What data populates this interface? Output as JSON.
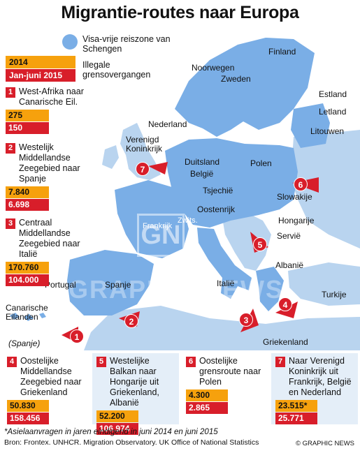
{
  "title": "Migrantie-routes naar Europa",
  "colors": {
    "schengen": "#7aaee6",
    "non_schengen": "#b9d4ef",
    "sea": "#ffffff",
    "route": "#d81e2a",
    "value_2014": "#f6a10d",
    "value_2015": "#d81e2a"
  },
  "legend": {
    "schengen_label": "Visa-vrije reiszone van Schengen",
    "year_label": "2014",
    "period_label": "Jan-juni 2015",
    "crossings_label": "Illegale grensovergangen"
  },
  "countries": {
    "finland": "Finland",
    "noorwegen": "Noorwegen",
    "zweden": "Zweden",
    "estland": "Estland",
    "letland": "Letland",
    "litouwen": "Litouwen",
    "nederland": "Nederland",
    "verenigd_koninkrijk": "Verenigd Koninkrijk",
    "duitsland": "Duitsland",
    "belgie": "België",
    "polen": "Polen",
    "tsjechie": "Tsjechië",
    "slowakije": "Slowakije",
    "oostenrijk": "Oostenrijk",
    "frankrijk": "Frankrijk",
    "zwitserland": "Zwits.",
    "hongarije": "Hongarije",
    "servie": "Servië",
    "albanie": "Albanië",
    "portugal": "Portugal",
    "spanje": "Spanje",
    "italie": "Italië",
    "turkije": "Turkije",
    "griekenland": "Griekenland",
    "canarische_eilanden": "Canarische Eilanden",
    "spanje_note": "(Spanje)"
  },
  "routes": [
    {
      "num": "1",
      "label": "West-Afrika naar Canarische Eil.",
      "v2014": "275",
      "v2015": "150"
    },
    {
      "num": "2",
      "label": "Westelijk Middellandse Zeegebied naar Spanje",
      "v2014": "7.840",
      "v2015": "6.698"
    },
    {
      "num": "3",
      "label": "Centraal Middellandse Zeegebied naar Italië",
      "v2014": "170.760",
      "v2015": "104.000"
    },
    {
      "num": "4",
      "label": "Oostelijke Middellandse Zeegebied naar Griekenland",
      "v2014": "50.830",
      "v2015": "158.456"
    },
    {
      "num": "5",
      "label": "Westelijke Balkan naar Hongarije uit Griekenland, Albanië",
      "v2014": "52.200",
      "v2015": "106.974"
    },
    {
      "num": "6",
      "label": "Oostelijke grensroute naar Polen",
      "v2014": "4.300",
      "v2015": "2.865"
    },
    {
      "num": "7",
      "label": "Naar Verenigd Koninkrijk uit Frankrijk, België en Nederland",
      "v2014": "23.515*",
      "v2015": "25.771"
    }
  ],
  "footnote": "*Asielaanvragen in jaren eindigend in juni 2014 en juni 2015",
  "source": "Bron: Frontex. UNHCR. Migration Observatory. UK Office of National Statistics",
  "credit": "© GRAPHIC NEWS",
  "watermark": {
    "logo": "GN",
    "text": "GRAPHIC NEWS"
  }
}
